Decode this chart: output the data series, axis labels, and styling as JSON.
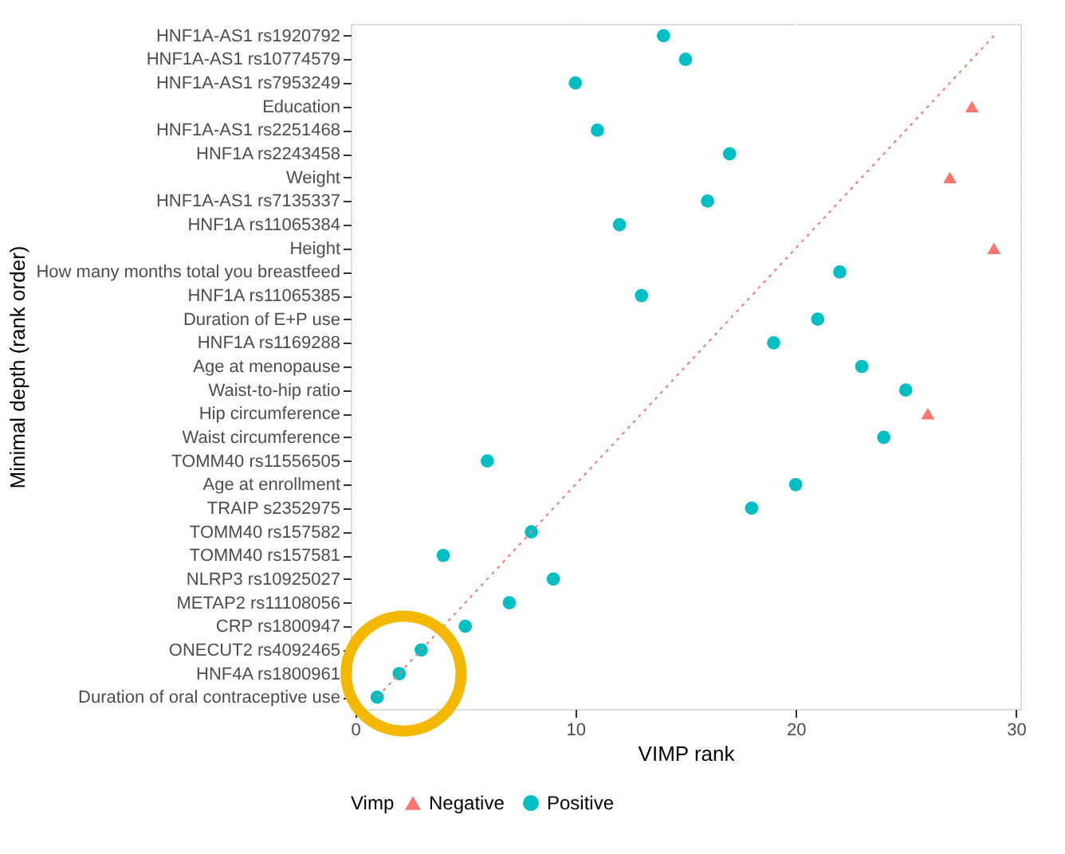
{
  "chart_data": {
    "type": "scatter",
    "orientation": "horizontal",
    "xlabel": "VIMP rank",
    "ylabel": "Minimal depth (rank order)",
    "legend_title": "Vimp",
    "legend": "bottom",
    "grid": true,
    "xlim": [
      -0.2,
      30.2
    ],
    "xticks": [
      0,
      10,
      20,
      30
    ],
    "categories": [
      "HNF1A-AS1 rs1920792",
      "HNF1A-AS1 rs10774579",
      "HNF1A-AS1 rs7953249",
      "Education",
      "HNF1A-AS1 rs2251468",
      "HNF1A rs2243458",
      "Weight",
      "HNF1A-AS1 rs7135337",
      "HNF1A rs11065384",
      "Height",
      "How many months total you breastfeed",
      "HNF1A rs11065385",
      "Duration of E+P use",
      "HNF1A rs1169288",
      "Age at menopause",
      "Waist-to-hip ratio",
      "Hip circumference",
      "Waist circumference",
      "TOMM40 rs11556505",
      "Age at enrollment",
      "TRAIP s2352975",
      "TOMM40 rs157582",
      "TOMM40 rs157581",
      "NLRP3 rs10925027",
      "METAP2 rs11108056",
      "CRP rs1800947",
      "ONECUT2 rs4092465",
      "HNF4A rs1800961",
      "Duration of oral contraceptive use"
    ],
    "series": [
      {
        "name": "Negative",
        "color": "#f8766d",
        "marker": "triangle",
        "values": [
          null,
          null,
          null,
          28,
          null,
          null,
          27,
          null,
          null,
          29,
          null,
          null,
          null,
          null,
          null,
          null,
          26,
          null,
          null,
          null,
          null,
          null,
          null,
          null,
          null,
          null,
          null,
          null,
          null
        ]
      },
      {
        "name": "Positive",
        "color": "#00bfc4",
        "marker": "circle",
        "values": [
          14,
          15,
          10,
          null,
          11,
          17,
          null,
          16,
          12,
          null,
          22,
          13,
          21,
          19,
          23,
          25,
          null,
          24,
          6,
          20,
          18,
          8,
          4,
          9,
          7,
          5,
          3,
          2,
          1
        ]
      },
      {
        "type": "line",
        "color": "#f8766d",
        "line_style": "dotted",
        "values": [
          29,
          28,
          27,
          26,
          25,
          24,
          23,
          22,
          21,
          20,
          19,
          18,
          17,
          16,
          15,
          14,
          13,
          12,
          11,
          10,
          9,
          8,
          7,
          6,
          5,
          4,
          3,
          2,
          1
        ]
      }
    ]
  }
}
